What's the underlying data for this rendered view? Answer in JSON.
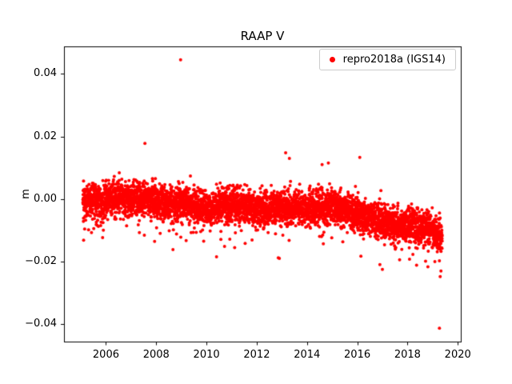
{
  "figure": {
    "title": "RAAP V",
    "background": "#ffffff"
  },
  "chart_data": {
    "type": "scatter",
    "title": "RAAP V",
    "xlabel": "",
    "ylabel": "m",
    "xlim": [
      2004.33,
      2020.12
    ],
    "ylim": [
      -0.0456,
      0.0488
    ],
    "xticks": [
      2006,
      2008,
      2010,
      2012,
      2014,
      2016,
      2018,
      2020
    ],
    "yticks": [
      -0.04,
      -0.02,
      0.0,
      0.02,
      0.04
    ],
    "grid": false,
    "legend": {
      "position": "upper right",
      "entries": [
        {
          "label": "repro2018a (IGS14)",
          "marker": "circle",
          "color": "#ff0000"
        }
      ]
    },
    "series": [
      {
        "name": "repro2018a (IGS14)",
        "color": "#ff0000",
        "marker_radius_px": 2,
        "sampling": {
          "x_start": 2005.08,
          "x_end": 2019.38,
          "points_per_year": 360,
          "seed": 42,
          "spread": 0.009,
          "tail_down_p": 0.025,
          "tail_down": 0.009,
          "tail_up_p": 0.006,
          "tail_up": 0.005
        },
        "trend_mean": [
          [
            2005.08,
            -0.001
          ],
          [
            2006.0,
            -0.0005
          ],
          [
            2006.5,
            0.0005
          ],
          [
            2007.5,
            0.0
          ],
          [
            2008.0,
            -0.001
          ],
          [
            2009.0,
            -0.001
          ],
          [
            2009.8,
            -0.003
          ],
          [
            2010.5,
            -0.002
          ],
          [
            2011.0,
            -0.0015
          ],
          [
            2012.0,
            -0.003
          ],
          [
            2013.0,
            -0.0025
          ],
          [
            2014.0,
            -0.003
          ],
          [
            2014.8,
            -0.002
          ],
          [
            2015.5,
            -0.004
          ],
          [
            2016.0,
            -0.005
          ],
          [
            2016.5,
            -0.006
          ],
          [
            2017.0,
            -0.007
          ],
          [
            2017.5,
            -0.008
          ],
          [
            2018.0,
            -0.0085
          ],
          [
            2018.5,
            -0.009
          ],
          [
            2019.0,
            -0.01
          ],
          [
            2019.38,
            -0.013
          ]
        ],
        "outliers": [
          [
            2008.97,
            0.0445
          ],
          [
            2007.55,
            0.0178
          ],
          [
            2013.15,
            0.0148
          ],
          [
            2016.1,
            0.0133
          ],
          [
            2014.85,
            0.0115
          ],
          [
            2014.6,
            0.011
          ],
          [
            2013.3,
            0.013
          ],
          [
            2019.27,
            -0.0413
          ],
          [
            2017.0,
            -0.0225
          ],
          [
            2019.3,
            -0.0248
          ],
          [
            2019.33,
            -0.023
          ],
          [
            2010.4,
            -0.0185
          ],
          [
            2012.9,
            -0.019
          ],
          [
            2016.9,
            -0.021
          ]
        ]
      }
    ]
  }
}
